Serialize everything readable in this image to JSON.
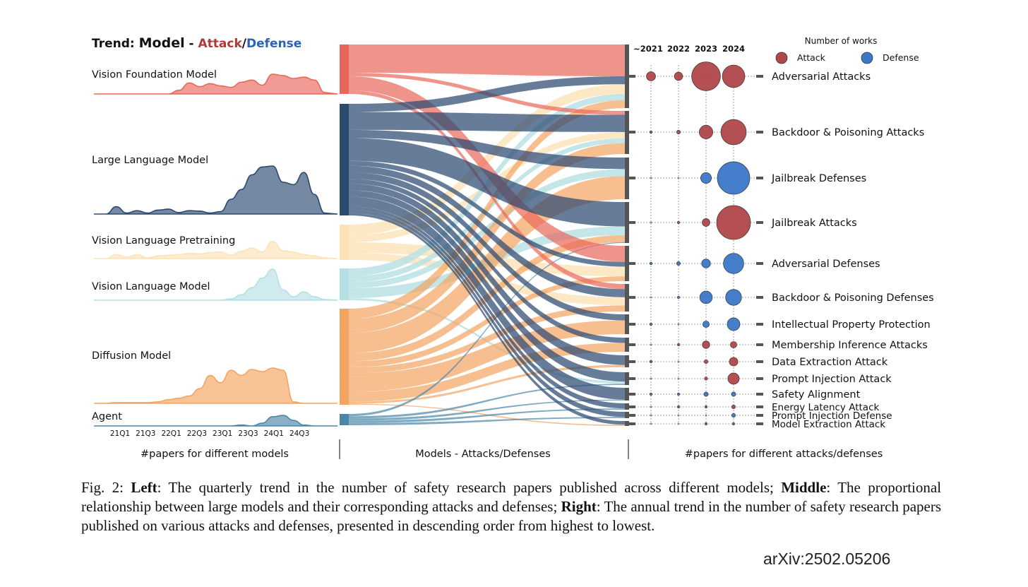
{
  "figure": {
    "title": {
      "prefix": "Trend:",
      "model": "Model",
      "dash": "-",
      "attack": "Attack",
      "slash": "/",
      "defense": "Defense"
    },
    "panel_labels": {
      "left": "#papers for different models",
      "middle": "Models - Attacks/Defenses",
      "right": "#papers for different attacks/defenses"
    },
    "caption": {
      "fig_label": "Fig. 2:",
      "left_word": "Left",
      "left_text": ": The quarterly trend in the number of safety research papers published across different models;",
      "middle_word": "Middle",
      "middle_text": ": The proportional relationship between large models and their corresponding attacks and defenses;",
      "right_word": "Right",
      "right_text": ": The annual trend in the number of safety research papers published on various attacks and defenses, presented in descending order from highest to lowest."
    },
    "arxiv_id": "arXiv:2502.05206",
    "colors": {
      "vfm": "#e8675a",
      "llm": "#2b4a70",
      "vlp": "#fde2b8",
      "vlm": "#b5e0e4",
      "dm": "#f4a460",
      "agent": "#4a86a8",
      "attack": "#b0474a",
      "defense": "#3b78c8",
      "target_bar": "#555555"
    }
  },
  "chart_data": [
    {
      "type": "area",
      "panel": "left",
      "x_ticks": [
        "21Q1",
        "21Q3",
        "22Q1",
        "22Q3",
        "23Q1",
        "23Q3",
        "24Q1",
        "24Q3"
      ],
      "series": [
        {
          "name": "Vision Foundation Model",
          "color_key": "vfm",
          "values": [
            0,
            0,
            0,
            0,
            0,
            0,
            0,
            0.5,
            1.5,
            1.0,
            1.4,
            1.1,
            0.9,
            1.6,
            1.9,
            1.2,
            2.7,
            2.5,
            2.1,
            2.3,
            1.9,
            0.2
          ]
        },
        {
          "name": "Large Language Model",
          "color_key": "llm",
          "values": [
            0,
            1.5,
            0.2,
            0.7,
            0.2,
            0.8,
            1.0,
            0.3,
            0.7,
            0.6,
            0.2,
            0.5,
            3.0,
            5.0,
            8.0,
            9.6,
            9.8,
            6.5,
            6.0,
            8.5,
            4.0,
            0.2
          ]
        },
        {
          "name": "Vision Language Pretraining",
          "color_key": "vlp",
          "values": [
            0,
            0.6,
            0.2,
            0.6,
            0.1,
            0.4,
            0.5,
            0.6,
            0.8,
            0.7,
            0.9,
            1.0,
            0.5,
            1.1,
            1.6,
            1.0,
            2.6,
            1.2,
            1.0,
            0.6,
            0.4,
            0.1
          ]
        },
        {
          "name": "Vision Language Model",
          "color_key": "vlm",
          "values": [
            0,
            0,
            0,
            0,
            0,
            0,
            0,
            0,
            0,
            0,
            0,
            0,
            0.2,
            0.8,
            1.8,
            3.2,
            4.5,
            1.5,
            0.5,
            1.2,
            0.5,
            0.1
          ]
        },
        {
          "name": "Diffusion Model",
          "color_key": "dm",
          "values": [
            0,
            0.1,
            0.1,
            0.1,
            0.1,
            0.2,
            0.5,
            0.7,
            1.0,
            2.0,
            3.8,
            2.8,
            4.5,
            3.8,
            4.6,
            4.3,
            4.8,
            4.5,
            0.2,
            0,
            0,
            0
          ]
        },
        {
          "name": "Agent",
          "color_key": "agent",
          "values": [
            0,
            0,
            0,
            0,
            0,
            0,
            0,
            0,
            0,
            0,
            0,
            0,
            0,
            0.2,
            0,
            0.6,
            2.0,
            2.3,
            1.2,
            0.2,
            0,
            0
          ]
        }
      ]
    },
    {
      "type": "sankey",
      "panel": "middle",
      "sources": [
        "Vision Foundation Model",
        "Large Language Model",
        "Vision Language Pretraining",
        "Vision Language Model",
        "Diffusion Model",
        "Agent"
      ],
      "targets": [
        "Adversarial Attacks",
        "Backdoor & Poisoning Attacks",
        "Jailbreak Defenses",
        "Jailbreak Attacks",
        "Adversarial Defenses",
        "Backdoor & Poisoning Defenses",
        "Intellectual Property Protection",
        "Membership Inference Attacks",
        "Data Extraction Attack",
        "Prompt Injection Attack",
        "Safety Alignment",
        "Energy Latency Attack",
        "Prompt Injection Defense",
        "Model Extraction Attack"
      ],
      "links": [
        {
          "source": "Vision Foundation Model",
          "target": "Adversarial Attacks",
          "value": 40
        },
        {
          "source": "Vision Foundation Model",
          "target": "Adversarial Defenses",
          "value": 20
        },
        {
          "source": "Vision Foundation Model",
          "target": "Backdoor & Poisoning Defenses",
          "value": 5
        },
        {
          "source": "Vision Foundation Model",
          "target": "Backdoor & Poisoning Attacks",
          "value": 5
        },
        {
          "source": "Large Language Model",
          "target": "Adversarial Attacks",
          "value": 10
        },
        {
          "source": "Large Language Model",
          "target": "Backdoor & Poisoning Attacks",
          "value": 22
        },
        {
          "source": "Large Language Model",
          "target": "Jailbreak Defenses",
          "value": 10
        },
        {
          "source": "Large Language Model",
          "target": "Jailbreak Attacks",
          "value": 28
        },
        {
          "source": "Large Language Model",
          "target": "Adversarial Defenses",
          "value": 6
        },
        {
          "source": "Large Language Model",
          "target": "Backdoor & Poisoning Defenses",
          "value": 8
        },
        {
          "source": "Large Language Model",
          "target": "Intellectual Property Protection",
          "value": 8
        },
        {
          "source": "Large Language Model",
          "target": "Membership Inference Attacks",
          "value": 6
        },
        {
          "source": "Large Language Model",
          "target": "Data Extraction Attack",
          "value": 8
        },
        {
          "source": "Large Language Model",
          "target": "Prompt Injection Attack",
          "value": 8
        },
        {
          "source": "Large Language Model",
          "target": "Safety Alignment",
          "value": 12
        },
        {
          "source": "Large Language Model",
          "target": "Energy Latency Attack",
          "value": 4
        },
        {
          "source": "Large Language Model",
          "target": "Prompt Injection Defense",
          "value": 4
        },
        {
          "source": "Large Language Model",
          "target": "Model Extraction Attack",
          "value": 3
        },
        {
          "source": "Vision Language Pretraining",
          "target": "Adversarial Attacks",
          "value": 12
        },
        {
          "source": "Vision Language Pretraining",
          "target": "Backdoor & Poisoning Attacks",
          "value": 8
        },
        {
          "source": "Vision Language Pretraining",
          "target": "Adversarial Defenses",
          "value": 12
        },
        {
          "source": "Vision Language Pretraining",
          "target": "Backdoor & Poisoning Defenses",
          "value": 8
        },
        {
          "source": "Vision Language Model",
          "target": "Adversarial Attacks",
          "value": 8
        },
        {
          "source": "Vision Language Model",
          "target": "Backdoor & Poisoning Attacks",
          "value": 6
        },
        {
          "source": "Vision Language Model",
          "target": "Jailbreak Defenses",
          "value": 6
        },
        {
          "source": "Vision Language Model",
          "target": "Jailbreak Attacks",
          "value": 10
        },
        {
          "source": "Vision Language Model",
          "target": "Prompt Injection Attack",
          "value": 2
        },
        {
          "source": "Diffusion Model",
          "target": "Adversarial Attacks",
          "value": 10
        },
        {
          "source": "Diffusion Model",
          "target": "Backdoor & Poisoning Attacks",
          "value": 14
        },
        {
          "source": "Diffusion Model",
          "target": "Jailbreak Defenses",
          "value": 20
        },
        {
          "source": "Diffusion Model",
          "target": "Jailbreak Attacks",
          "value": 8
        },
        {
          "source": "Diffusion Model",
          "target": "Adversarial Defenses",
          "value": 6
        },
        {
          "source": "Diffusion Model",
          "target": "Backdoor & Poisoning Defenses",
          "value": 6
        },
        {
          "source": "Diffusion Model",
          "target": "Intellectual Property Protection",
          "value": 18
        },
        {
          "source": "Diffusion Model",
          "target": "Membership Inference Attacks",
          "value": 10
        },
        {
          "source": "Diffusion Model",
          "target": "Data Extraction Attack",
          "value": 2
        },
        {
          "source": "Diffusion Model",
          "target": "Model Extraction Attack",
          "value": 1
        },
        {
          "source": "Agent",
          "target": "Jailbreak Attacks",
          "value": 1
        },
        {
          "source": "Agent",
          "target": "Prompt Injection Attack",
          "value": 1
        },
        {
          "source": "Agent",
          "target": "Safety Alignment",
          "value": 1
        },
        {
          "source": "Agent",
          "target": "Energy Latency Attack",
          "value": 1
        },
        {
          "source": "Agent",
          "target": "Prompt Injection Defense",
          "value": 1
        }
      ]
    },
    {
      "type": "scatter",
      "panel": "right",
      "columns": [
        "~2021",
        "2022",
        "2023",
        "2024"
      ],
      "legend_title": "Number of works",
      "legend": [
        {
          "label": "Attack",
          "color_key": "attack"
        },
        {
          "label": "Defense",
          "color_key": "defense"
        }
      ],
      "legend_position": "top-right",
      "rows": [
        {
          "name": "Adversarial Attacks",
          "kind": "Attack",
          "values": [
            18,
            15,
            180,
            110
          ]
        },
        {
          "name": "Backdoor & Poisoning Attacks",
          "kind": "Attack",
          "values": [
            1,
            3,
            40,
            140
          ]
        },
        {
          "name": "Jailbreak Defenses",
          "kind": "Defense",
          "values": [
            0,
            0,
            25,
            230
          ]
        },
        {
          "name": "Jailbreak Attacks",
          "kind": "Attack",
          "values": [
            0,
            1,
            13,
            250
          ]
        },
        {
          "name": "Adversarial Defenses",
          "kind": "Defense",
          "values": [
            1,
            3,
            17,
            90
          ]
        },
        {
          "name": "Backdoor & Poisoning Defenses",
          "kind": "Defense",
          "values": [
            0,
            1,
            34,
            55
          ]
        },
        {
          "name": "Intellectual Property Protection",
          "kind": "Defense",
          "values": [
            1,
            0,
            9,
            35
          ]
        },
        {
          "name": "Membership Inference Attacks",
          "kind": "Attack",
          "values": [
            0,
            1,
            12,
            9
          ]
        },
        {
          "name": "Data Extraction Attack",
          "kind": "Attack",
          "values": [
            1,
            0,
            3,
            16
          ]
        },
        {
          "name": "Prompt Injection Attack",
          "kind": "Attack",
          "values": [
            0,
            0,
            2,
            28
          ]
        },
        {
          "name": "Safety Alignment",
          "kind": "Defense",
          "values": [
            1,
            1,
            4,
            4
          ]
        },
        {
          "name": "Energy Latency Attack",
          "kind": "Attack",
          "values": [
            0,
            1,
            1,
            3
          ]
        },
        {
          "name": "Prompt Injection Defense",
          "kind": "Defense",
          "values": [
            0,
            0,
            0,
            3
          ]
        },
        {
          "name": "Model Extraction Attack",
          "kind": "Attack",
          "values": [
            0,
            0,
            1,
            1
          ]
        }
      ],
      "grid": true
    }
  ]
}
